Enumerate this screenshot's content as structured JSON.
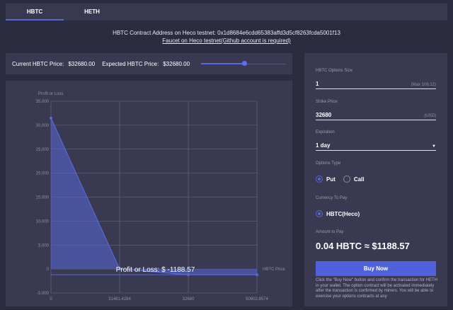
{
  "tabs": [
    {
      "label": "HBTC",
      "active": true
    },
    {
      "label": "HETH",
      "active": false
    }
  ],
  "contract_address": "HBTC Contract Address on Heco testnet: 0x1d8684e6cdd65383affd3d5cf8263fcda5001f13",
  "faucet_link": "Faucet on Heco testnet(Github account is required)",
  "price_bar": {
    "current_label": "Current HBTC Price:",
    "current_value": "$32680.00",
    "expected_label": "Expected HBTC Price:",
    "expected_value": "$32680.00",
    "slider_percent": 50
  },
  "chart_data": {
    "type": "area",
    "ylabel": "Profit or Loss",
    "xlabel": "HBTC Price",
    "categories": [
      "0",
      "31491.4284",
      "32680",
      "50602.8574"
    ],
    "values": [
      31491.43,
      0,
      -1188.57,
      -1188.57
    ],
    "ylim": [
      -5000,
      35000
    ],
    "yticks": [
      35000,
      30000,
      25000,
      20000,
      15000,
      10000,
      5000,
      0,
      -5000
    ],
    "ytick_labels": [
      "35,000",
      "30,000",
      "25,000",
      "20,000",
      "15,000",
      "10,000",
      "5,000",
      "0",
      "-5,000"
    ],
    "annotation": "Profit or Loss: $ -1188.57",
    "markline": -1188.57,
    "grid": true,
    "color": "#5868d8"
  },
  "form": {
    "size_label": "HBTC Options Size",
    "size_value": "1",
    "size_hint": "(Max 106.12)",
    "strike_label": "Strike Price",
    "strike_value": "32680",
    "strike_hint": "(USD)",
    "expiration_label": "Expiration",
    "expiration_value": "1 day",
    "type_label": "Options Type",
    "put": "Put",
    "call": "Call",
    "selected_type": "Put",
    "currency_label": "Currency To Pay",
    "currency": "HBTC(Heco)",
    "amount_label": "Amount to Pay",
    "amount": "0.04 HBTC ≈ $1188.57",
    "buy_label": "Buy Now",
    "note": "Click the \"Buy Now\" button and confirm the transaction for HETH in your wallet. The option contract will be activated immediately after the transaction is confirmed by miners. You will be able to exercise your options contracts at any"
  }
}
